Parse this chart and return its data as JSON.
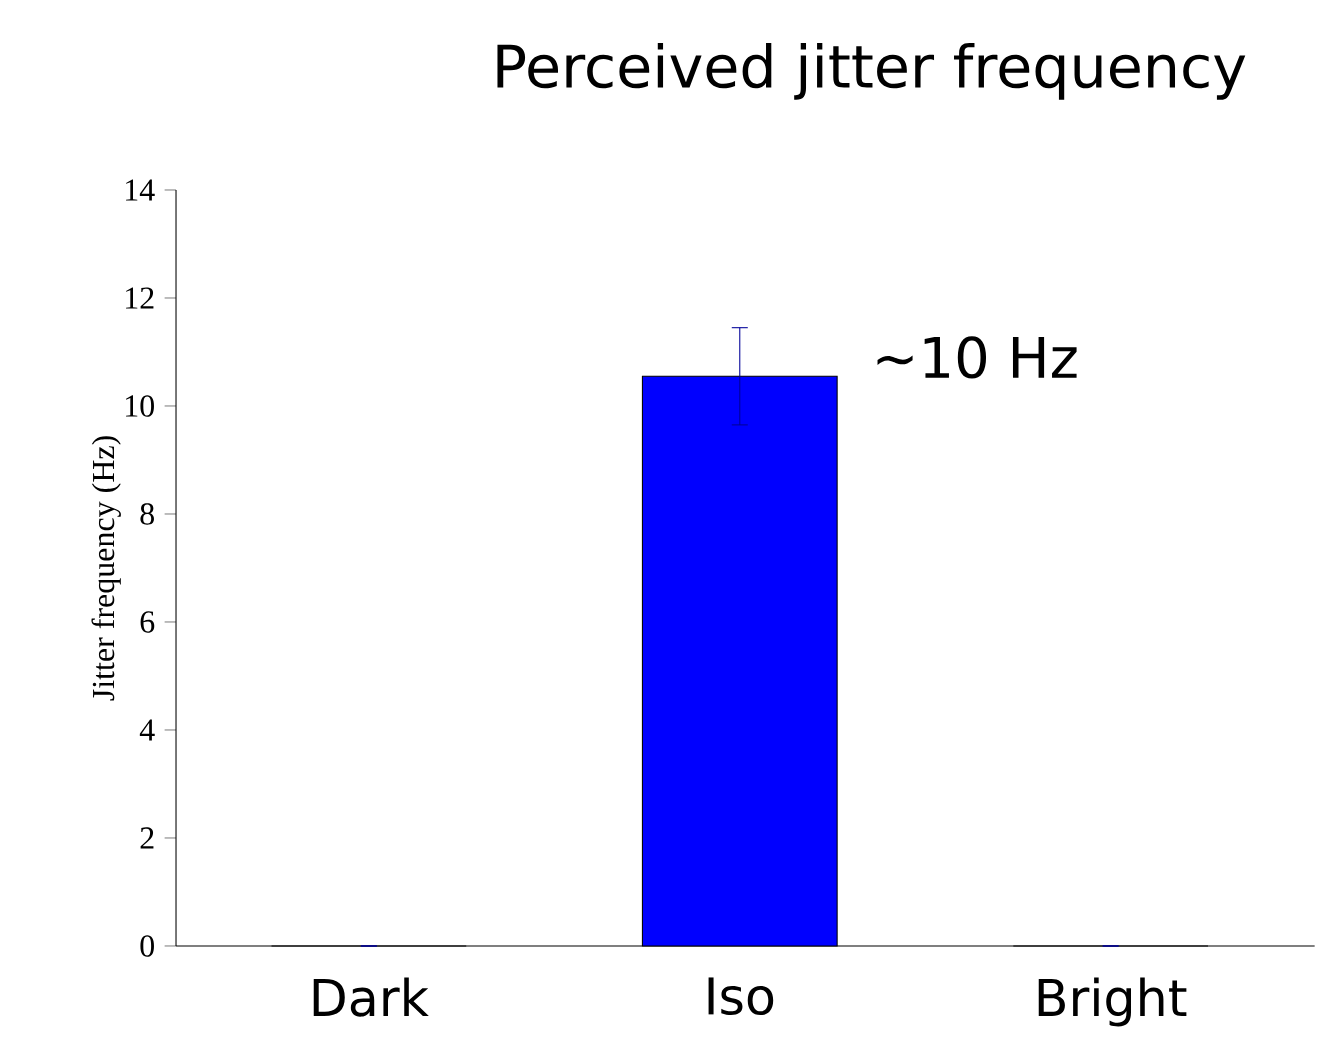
{
  "chart_data": {
    "type": "bar",
    "title": "Perceived jitter frequency",
    "ylabel": "Jitter frequency (Hz)",
    "categories": [
      "Dark",
      "Iso",
      "Bright"
    ],
    "values": [
      0,
      10.55,
      0
    ],
    "errors": [
      null,
      0.9,
      null
    ],
    "color": "#0000ff",
    "ylim": [
      0,
      14
    ],
    "yticks": [
      0,
      2,
      4,
      6,
      8,
      10,
      12,
      14
    ],
    "annotations": [
      "~10 Hz"
    ]
  }
}
